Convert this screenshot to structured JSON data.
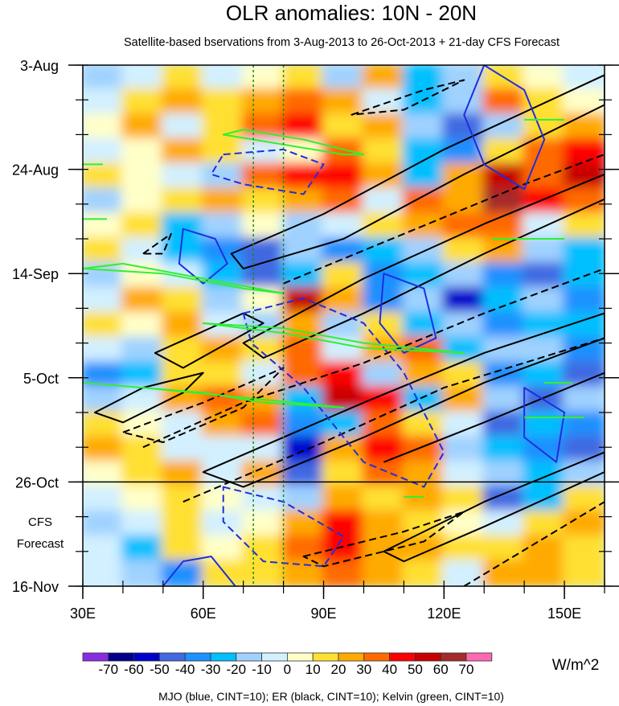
{
  "chart_data": {
    "type": "heatmap",
    "title": "OLR anomalies: 10N - 20N",
    "subtitle": "Satellite-based bservations from 3-Aug-2013 to 26-Oct-2013 + 21-day CFS Forecast",
    "xlabel": "",
    "ylabel": "",
    "xlim": [
      30,
      160
    ],
    "ylim_days": [
      0,
      105
    ],
    "x_ticks": [
      {
        "value": 30,
        "label": "30E"
      },
      {
        "value": 60,
        "label": "60E"
      },
      {
        "value": 90,
        "label": "90E"
      },
      {
        "value": 120,
        "label": "120E"
      },
      {
        "value": 150,
        "label": "150E"
      }
    ],
    "x_minor_step": 10,
    "y_ticks": [
      {
        "day": 0,
        "label": "3-Aug"
      },
      {
        "day": 21,
        "label": "24-Aug"
      },
      {
        "day": 42,
        "label": "14-Sep"
      },
      {
        "day": 63,
        "label": "5-Oct"
      },
      {
        "day": 84,
        "label": "26-Oct"
      },
      {
        "day": 105,
        "label": "16-Nov"
      }
    ],
    "y_minor_step": 7,
    "forecast_label": [
      "CFS",
      "Forecast"
    ],
    "forecast_start_day": 84,
    "reference_lons": [
      72.5,
      80
    ],
    "grid_lons": [
      35,
      45,
      55,
      65,
      75,
      85,
      95,
      105,
      115,
      125,
      135,
      145,
      155
    ],
    "grid_days_step": 5,
    "values": [
      [
        -20,
        -10,
        10,
        -10,
        0,
        10,
        -20,
        20,
        -30,
        -20,
        10,
        0,
        -10
      ],
      [
        -10,
        10,
        20,
        10,
        20,
        30,
        20,
        -10,
        -30,
        -20,
        30,
        10,
        0
      ],
      [
        0,
        20,
        -10,
        10,
        30,
        40,
        10,
        20,
        -20,
        -50,
        -20,
        10,
        20
      ],
      [
        -10,
        0,
        20,
        10,
        -10,
        0,
        30,
        10,
        -30,
        -40,
        10,
        30,
        40
      ],
      [
        10,
        0,
        -10,
        -20,
        30,
        40,
        40,
        20,
        -30,
        20,
        50,
        30,
        50
      ],
      [
        -20,
        0,
        10,
        20,
        10,
        20,
        30,
        -10,
        30,
        20,
        60,
        40,
        30
      ],
      [
        0,
        10,
        -30,
        -20,
        0,
        -20,
        -10,
        10,
        20,
        30,
        30,
        -10,
        10
      ],
      [
        10,
        -10,
        -30,
        -40,
        -50,
        -20,
        -40,
        -30,
        -20,
        10,
        20,
        -20,
        -30
      ],
      [
        -20,
        0,
        -10,
        -30,
        -50,
        -30,
        10,
        -40,
        -30,
        -20,
        -40,
        -50,
        -30
      ],
      [
        -10,
        20,
        10,
        -20,
        0,
        50,
        20,
        -40,
        -20,
        -60,
        -30,
        -20,
        -40
      ],
      [
        10,
        0,
        20,
        -10,
        -20,
        20,
        -20,
        10,
        -30,
        -20,
        -40,
        -30,
        -30
      ],
      [
        -10,
        -20,
        10,
        20,
        10,
        30,
        -10,
        20,
        30,
        -30,
        -20,
        -20,
        -40
      ],
      [
        -40,
        -30,
        10,
        10,
        -10,
        30,
        40,
        -20,
        20,
        10,
        -40,
        -30,
        -50
      ],
      [
        -20,
        -10,
        20,
        30,
        20,
        -30,
        50,
        40,
        -30,
        20,
        -20,
        -50,
        -20
      ],
      [
        10,
        0,
        -10,
        20,
        30,
        -40,
        -30,
        30,
        10,
        -10,
        -50,
        -30,
        -40
      ],
      [
        20,
        10,
        -10,
        -10,
        -10,
        -60,
        20,
        40,
        30,
        -20,
        -30,
        -40,
        -50
      ],
      [
        0,
        10,
        20,
        -10,
        20,
        -50,
        10,
        30,
        20,
        -10,
        -20,
        -30,
        -20
      ],
      [
        -10,
        0,
        10,
        0,
        -10,
        -20,
        20,
        10,
        20,
        10,
        -50,
        -30,
        10
      ],
      [
        -20,
        -10,
        10,
        -10,
        0,
        20,
        40,
        20,
        10,
        0,
        -10,
        10,
        20
      ],
      [
        -10,
        -30,
        10,
        0,
        10,
        30,
        40,
        20,
        20,
        10,
        10,
        20,
        10
      ],
      [
        -10,
        -20,
        -40,
        10,
        10,
        20,
        30,
        20,
        10,
        -10,
        20,
        20,
        10
      ]
    ],
    "colorbar": {
      "labels": [
        "-70",
        "-60",
        "-50",
        "-40",
        "-30",
        "-20",
        "-10",
        "0",
        "10",
        "20",
        "30",
        "40",
        "50",
        "60",
        "70"
      ],
      "colors": [
        "#8a2be2",
        "#00008b",
        "#0000cd",
        "#4169e1",
        "#1e90ff",
        "#00bfff",
        "#a0d2ff",
        "#d2f0ff",
        "#ffffc8",
        "#ffe033",
        "#ffaa00",
        "#ff6a00",
        "#ff0000",
        "#c80000",
        "#a52a2a",
        "#ff69b4"
      ],
      "units": "W/m^2"
    },
    "caption": "MJO (blue, CINT=10); ER (black, CINT=10); Kelvin (green, CINT=10)",
    "contours": [
      {
        "name": "er-positive",
        "color": "#000000",
        "dashed": false,
        "closed": true,
        "points": [
          [
            67,
            38
          ],
          [
            90,
            30
          ],
          [
            120,
            17
          ],
          [
            160,
            2
          ],
          [
            160,
            8
          ],
          [
            125,
            22
          ],
          [
            95,
            35
          ],
          [
            70,
            41
          ]
        ]
      },
      {
        "name": "er-positive",
        "color": "#000000",
        "dashed": false,
        "closed": true,
        "points": [
          [
            70,
            56
          ],
          [
            100,
            43
          ],
          [
            130,
            32
          ],
          [
            160,
            22
          ],
          [
            160,
            27
          ],
          [
            130,
            38
          ],
          [
            100,
            50
          ],
          [
            75,
            59
          ]
        ]
      },
      {
        "name": "er-positive",
        "color": "#000000",
        "dashed": false,
        "closed": true,
        "points": [
          [
            33,
            70
          ],
          [
            45,
            65
          ],
          [
            60,
            62
          ],
          [
            55,
            66
          ],
          [
            40,
            72
          ]
        ]
      },
      {
        "name": "er-positive",
        "color": "#000000",
        "dashed": false,
        "closed": true,
        "points": [
          [
            48,
            58
          ],
          [
            70,
            50
          ],
          [
            75,
            52
          ],
          [
            55,
            61
          ]
        ]
      },
      {
        "name": "er-positive",
        "color": "#000000",
        "dashed": false,
        "closed": true,
        "points": [
          [
            60,
            82
          ],
          [
            100,
            68
          ],
          [
            130,
            58
          ],
          [
            160,
            50
          ],
          [
            160,
            55
          ],
          [
            130,
            64
          ],
          [
            100,
            75
          ],
          [
            70,
            85
          ]
        ]
      },
      {
        "name": "er-positive",
        "color": "#000000",
        "dashed": false,
        "closed": false,
        "points": [
          [
            105,
            80
          ],
          [
            130,
            72
          ],
          [
            160,
            62
          ]
        ]
      },
      {
        "name": "er-positive",
        "color": "#000000",
        "dashed": false,
        "closed": true,
        "points": [
          [
            105,
            98
          ],
          [
            130,
            88
          ],
          [
            160,
            78
          ],
          [
            160,
            82
          ],
          [
            130,
            93
          ],
          [
            110,
            100
          ]
        ]
      },
      {
        "name": "er-negative",
        "color": "#000000",
        "dashed": true,
        "closed": false,
        "points": [
          [
            80,
            44
          ],
          [
            110,
            34
          ],
          [
            140,
            24
          ],
          [
            160,
            18
          ]
        ]
      },
      {
        "name": "er-negative",
        "color": "#000000",
        "dashed": true,
        "closed": false,
        "points": [
          [
            45,
            77
          ],
          [
            70,
            68
          ],
          [
            100,
            60
          ],
          [
            130,
            50
          ],
          [
            160,
            41
          ]
        ]
      },
      {
        "name": "er-negative",
        "color": "#000000",
        "dashed": true,
        "closed": true,
        "points": [
          [
            40,
            74
          ],
          [
            60,
            68
          ],
          [
            80,
            61
          ],
          [
            70,
            69
          ],
          [
            50,
            76
          ]
        ]
      },
      {
        "name": "er-negative",
        "color": "#000000",
        "dashed": true,
        "closed": false,
        "points": [
          [
            55,
            88
          ],
          [
            90,
            76
          ],
          [
            120,
            65
          ],
          [
            160,
            55
          ]
        ]
      },
      {
        "name": "er-negative",
        "color": "#000000",
        "dashed": true,
        "closed": true,
        "points": [
          [
            85,
            99
          ],
          [
            110,
            94
          ],
          [
            125,
            90
          ],
          [
            115,
            96
          ],
          [
            90,
            101
          ]
        ]
      },
      {
        "name": "er-negative",
        "color": "#000000",
        "dashed": true,
        "closed": true,
        "points": [
          [
            97,
            10
          ],
          [
            115,
            5
          ],
          [
            125,
            3
          ],
          [
            110,
            9
          ]
        ]
      },
      {
        "name": "er-negative",
        "color": "#000000",
        "dashed": true,
        "closed": true,
        "points": [
          [
            45,
            38
          ],
          [
            52,
            34
          ],
          [
            50,
            38
          ]
        ]
      },
      {
        "name": "er-negative",
        "color": "#000000",
        "dashed": true,
        "closed": false,
        "points": [
          [
            125,
            105
          ],
          [
            160,
            88
          ]
        ]
      },
      {
        "name": "mjo-positive",
        "color": "#1e2ee0",
        "dashed": false,
        "closed": true,
        "points": [
          [
            130,
            0
          ],
          [
            140,
            5
          ],
          [
            145,
            15
          ],
          [
            140,
            25
          ],
          [
            130,
            20
          ],
          [
            125,
            10
          ]
        ]
      },
      {
        "name": "mjo-negative",
        "color": "#1e2ee0",
        "dashed": true,
        "closed": true,
        "points": [
          [
            65,
            18
          ],
          [
            80,
            17
          ],
          [
            90,
            20
          ],
          [
            85,
            26
          ],
          [
            70,
            24
          ],
          [
            62,
            22
          ]
        ]
      },
      {
        "name": "mjo-positive",
        "color": "#1e2ee0",
        "dashed": false,
        "closed": true,
        "points": [
          [
            55,
            33
          ],
          [
            63,
            35
          ],
          [
            66,
            40
          ],
          [
            60,
            44
          ],
          [
            54,
            40
          ]
        ]
      },
      {
        "name": "mjo-positive",
        "color": "#1e2ee0",
        "dashed": false,
        "closed": true,
        "points": [
          [
            105,
            42
          ],
          [
            115,
            45
          ],
          [
            118,
            55
          ],
          [
            110,
            58
          ],
          [
            104,
            52
          ]
        ]
      },
      {
        "name": "mjo-negative",
        "color": "#1e2ee0",
        "dashed": true,
        "closed": true,
        "points": [
          [
            70,
            50
          ],
          [
            85,
            47
          ],
          [
            100,
            52
          ],
          [
            110,
            62
          ],
          [
            120,
            78
          ],
          [
            115,
            85
          ],
          [
            100,
            80
          ],
          [
            85,
            65
          ],
          [
            72,
            56
          ]
        ]
      },
      {
        "name": "mjo-negative",
        "color": "#1e2ee0",
        "dashed": true,
        "closed": true,
        "points": [
          [
            65,
            85
          ],
          [
            80,
            88
          ],
          [
            95,
            95
          ],
          [
            90,
            101
          ],
          [
            75,
            100
          ],
          [
            65,
            92
          ]
        ]
      },
      {
        "name": "mjo-positive",
        "color": "#1e2ee0",
        "dashed": false,
        "closed": false,
        "points": [
          [
            50,
            105
          ],
          [
            55,
            100
          ],
          [
            62,
            99
          ],
          [
            68,
            105
          ]
        ]
      },
      {
        "name": "mjo-positive",
        "color": "#1e2ee0",
        "dashed": false,
        "closed": true,
        "points": [
          [
            140,
            65
          ],
          [
            150,
            70
          ],
          [
            148,
            80
          ],
          [
            140,
            75
          ]
        ]
      },
      {
        "name": "kelvin",
        "color": "#33ee33",
        "dashed": false,
        "closed": true,
        "points": [
          [
            65,
            14
          ],
          [
            80,
            16
          ],
          [
            95,
            18
          ],
          [
            100,
            18
          ],
          [
            85,
            15
          ],
          [
            70,
            13
          ]
        ]
      },
      {
        "name": "kelvin",
        "color": "#33ee33",
        "dashed": false,
        "closed": true,
        "points": [
          [
            30,
            41
          ],
          [
            50,
            42
          ],
          [
            70,
            45
          ],
          [
            80,
            46
          ],
          [
            60,
            43
          ],
          [
            40,
            40
          ]
        ]
      },
      {
        "name": "kelvin",
        "color": "#33ee33",
        "dashed": false,
        "closed": true,
        "points": [
          [
            60,
            52
          ],
          [
            80,
            54
          ],
          [
            100,
            57
          ],
          [
            125,
            58
          ],
          [
            100,
            56
          ],
          [
            80,
            53
          ]
        ]
      },
      {
        "name": "kelvin",
        "color": "#33ee33",
        "dashed": false,
        "closed": true,
        "points": [
          [
            30,
            64
          ],
          [
            60,
            66
          ],
          [
            75,
            68
          ],
          [
            95,
            69
          ],
          [
            70,
            67
          ],
          [
            45,
            65
          ]
        ]
      },
      {
        "name": "kelvin",
        "color": "#33ee33",
        "dashed": false,
        "closed": false,
        "points": [
          [
            30,
            20
          ],
          [
            35,
            20
          ]
        ]
      },
      {
        "name": "kelvin",
        "color": "#33ee33",
        "dashed": false,
        "closed": false,
        "points": [
          [
            30,
            31
          ],
          [
            36,
            31
          ]
        ]
      },
      {
        "name": "kelvin",
        "color": "#33ee33",
        "dashed": false,
        "closed": false,
        "points": [
          [
            140,
            11
          ],
          [
            150,
            11
          ]
        ]
      },
      {
        "name": "kelvin",
        "color": "#33ee33",
        "dashed": false,
        "closed": false,
        "points": [
          [
            132,
            35
          ],
          [
            150,
            35
          ]
        ]
      },
      {
        "name": "kelvin",
        "color": "#33ee33",
        "dashed": false,
        "closed": false,
        "points": [
          [
            145,
            64
          ],
          [
            152,
            64
          ]
        ]
      },
      {
        "name": "kelvin",
        "color": "#33ee33",
        "dashed": false,
        "closed": false,
        "points": [
          [
            110,
            87
          ],
          [
            115,
            87
          ]
        ]
      },
      {
        "name": "kelvin",
        "color": "#33ee33",
        "dashed": false,
        "closed": false,
        "points": [
          [
            140,
            71
          ],
          [
            155,
            71
          ]
        ]
      }
    ]
  }
}
